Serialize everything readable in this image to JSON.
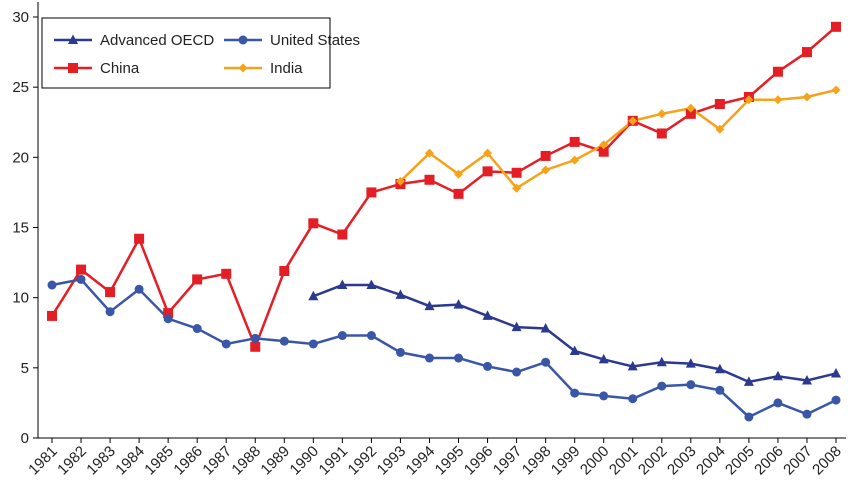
{
  "chart_data": {
    "type": "line",
    "categories": [
      "1981",
      "1982",
      "1983",
      "1984",
      "1985",
      "1986",
      "1987",
      "1988",
      "1989",
      "1990",
      "1991",
      "1992",
      "1993",
      "1994",
      "1995",
      "1996",
      "1997",
      "1998",
      "1999",
      "2000",
      "2001",
      "2002",
      "2003",
      "2004",
      "2005",
      "2006",
      "2007",
      "2008"
    ],
    "series": [
      {
        "name": "Advanced OECD",
        "color": "#2b3990",
        "marker": "triangle",
        "values": [
          null,
          null,
          null,
          null,
          null,
          null,
          null,
          null,
          null,
          10.1,
          10.9,
          10.9,
          10.2,
          9.4,
          9.5,
          8.7,
          7.9,
          7.8,
          6.2,
          5.6,
          5.1,
          5.4,
          5.3,
          4.9,
          4.0,
          4.4,
          4.1,
          4.6
        ]
      },
      {
        "name": "China",
        "color": "#e31e24",
        "marker": "square",
        "values": [
          8.7,
          12.0,
          10.4,
          14.2,
          8.9,
          11.3,
          11.7,
          6.5,
          11.9,
          15.3,
          14.5,
          17.5,
          18.1,
          18.4,
          17.4,
          19.0,
          18.9,
          20.1,
          21.1,
          20.4,
          22.6,
          21.7,
          23.1,
          23.8,
          24.3,
          26.1,
          27.5,
          29.3
        ]
      },
      {
        "name": "United States",
        "color": "#3a56a6",
        "marker": "circle",
        "values": [
          10.9,
          11.3,
          9.0,
          10.6,
          8.5,
          7.8,
          6.7,
          7.1,
          6.9,
          6.7,
          7.3,
          7.3,
          6.1,
          5.7,
          5.7,
          5.1,
          4.7,
          5.4,
          3.2,
          3.0,
          2.8,
          3.7,
          3.8,
          3.4,
          1.5,
          2.5,
          1.7,
          2.7
        ]
      },
      {
        "name": "India",
        "color": "#f7a21b",
        "marker": "diamond",
        "values": [
          null,
          null,
          null,
          null,
          null,
          null,
          null,
          null,
          null,
          null,
          null,
          null,
          18.3,
          20.3,
          18.8,
          20.3,
          17.8,
          19.1,
          19.8,
          20.9,
          22.6,
          23.1,
          23.5,
          22.0,
          24.1,
          24.1,
          24.3,
          24.8
        ]
      }
    ],
    "ylim": [
      0,
      30
    ],
    "yticks": [
      0,
      5,
      10,
      15,
      20,
      25,
      30
    ],
    "legend": "upper left"
  }
}
